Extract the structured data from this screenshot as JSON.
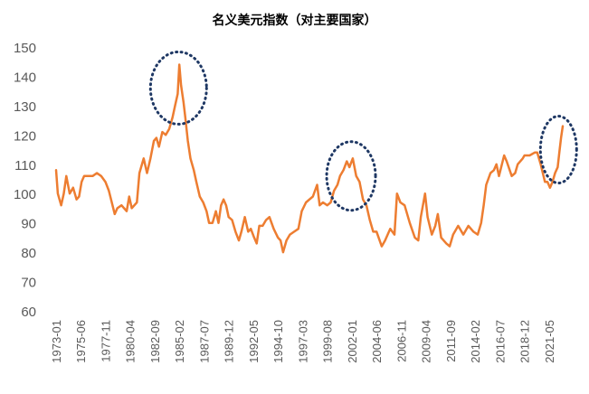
{
  "chart_data": {
    "type": "line",
    "title": "名义美元指数（对主要国家）",
    "xlabel": "",
    "ylabel": "",
    "ylim": [
      60,
      150
    ],
    "y_ticks": [
      60,
      70,
      80,
      90,
      100,
      110,
      120,
      130,
      140,
      150
    ],
    "x_tick_labels": [
      "1973-01",
      "1975-06",
      "1977-11",
      "1980-04",
      "1982-09",
      "1985-02",
      "1987-07",
      "1989-12",
      "1992-05",
      "1994-10",
      "1997-03",
      "1999-08",
      "2002-01",
      "2004-06",
      "2006-11",
      "2009-04",
      "2011-09",
      "2014-02",
      "2016-07",
      "2018-12",
      "2021-05"
    ],
    "x_range": [
      "1973-01",
      "2022-09"
    ],
    "grid": false,
    "legend": "none",
    "colors": {
      "line": "#ED7D31",
      "annotation": "#1F3864",
      "axis_text": "#595959"
    },
    "series": [
      {
        "points": [
          [
            "1973-01",
            108
          ],
          [
            "1973-03",
            100
          ],
          [
            "1973-07",
            96
          ],
          [
            "1973-10",
            100
          ],
          [
            "1974-01",
            106
          ],
          [
            "1974-05",
            100
          ],
          [
            "1974-09",
            102
          ],
          [
            "1975-01",
            98
          ],
          [
            "1975-04",
            99
          ],
          [
            "1975-07",
            104
          ],
          [
            "1975-10",
            106
          ],
          [
            "1976-03",
            106
          ],
          [
            "1976-08",
            106
          ],
          [
            "1977-01",
            107
          ],
          [
            "1977-06",
            106
          ],
          [
            "1977-11",
            104
          ],
          [
            "1978-03",
            101
          ],
          [
            "1978-10",
            93
          ],
          [
            "1979-01",
            95
          ],
          [
            "1979-06",
            96
          ],
          [
            "1979-12",
            94
          ],
          [
            "1980-03",
            99
          ],
          [
            "1980-06",
            95
          ],
          [
            "1980-12",
            97
          ],
          [
            "1981-03",
            107
          ],
          [
            "1981-08",
            112
          ],
          [
            "1981-12",
            107
          ],
          [
            "1982-04",
            112
          ],
          [
            "1982-08",
            118
          ],
          [
            "1982-11",
            119
          ],
          [
            "1983-02",
            116
          ],
          [
            "1983-06",
            121
          ],
          [
            "1983-10",
            120
          ],
          [
            "1984-02",
            122
          ],
          [
            "1984-06",
            126
          ],
          [
            "1984-09",
            130
          ],
          [
            "1984-12",
            134
          ],
          [
            "1985-02",
            144
          ],
          [
            "1985-04",
            137
          ],
          [
            "1985-07",
            131
          ],
          [
            "1985-09",
            126
          ],
          [
            "1985-12",
            118
          ],
          [
            "1986-03",
            112
          ],
          [
            "1986-07",
            108
          ],
          [
            "1986-10",
            104
          ],
          [
            "1987-02",
            99
          ],
          [
            "1987-06",
            97
          ],
          [
            "1987-10",
            94
          ],
          [
            "1988-01",
            90
          ],
          [
            "1988-05",
            90
          ],
          [
            "1988-09",
            94
          ],
          [
            "1988-12",
            90
          ],
          [
            "1989-03",
            96
          ],
          [
            "1989-06",
            98
          ],
          [
            "1989-09",
            96
          ],
          [
            "1989-12",
            92
          ],
          [
            "1990-04",
            91
          ],
          [
            "1990-08",
            87
          ],
          [
            "1990-12",
            84
          ],
          [
            "1991-03",
            87
          ],
          [
            "1991-07",
            92
          ],
          [
            "1991-11",
            87
          ],
          [
            "1992-02",
            88
          ],
          [
            "1992-06",
            85
          ],
          [
            "1992-09",
            83
          ],
          [
            "1992-12",
            89
          ],
          [
            "1993-04",
            89
          ],
          [
            "1993-08",
            91
          ],
          [
            "1993-12",
            92
          ],
          [
            "1994-05",
            88
          ],
          [
            "1994-10",
            85
          ],
          [
            "1995-01",
            84
          ],
          [
            "1995-04",
            80
          ],
          [
            "1995-08",
            84
          ],
          [
            "1995-12",
            86
          ],
          [
            "1996-05",
            87
          ],
          [
            "1996-10",
            88
          ],
          [
            "1997-02",
            94
          ],
          [
            "1997-07",
            97
          ],
          [
            "1997-11",
            98
          ],
          [
            "1998-03",
            99
          ],
          [
            "1998-08",
            103
          ],
          [
            "1998-11",
            96
          ],
          [
            "1999-03",
            97
          ],
          [
            "1999-08",
            96
          ],
          [
            "1999-12",
            97
          ],
          [
            "2000-04",
            101
          ],
          [
            "2000-08",
            103
          ],
          [
            "2000-11",
            106
          ],
          [
            "2001-03",
            108
          ],
          [
            "2001-07",
            111
          ],
          [
            "2001-10",
            109
          ],
          [
            "2002-02",
            112
          ],
          [
            "2002-06",
            106
          ],
          [
            "2002-10",
            104
          ],
          [
            "2003-02",
            98
          ],
          [
            "2003-06",
            96
          ],
          [
            "2003-10",
            91
          ],
          [
            "2004-02",
            87
          ],
          [
            "2004-06",
            87
          ],
          [
            "2004-12",
            82
          ],
          [
            "2005-04",
            84
          ],
          [
            "2005-10",
            88
          ],
          [
            "2006-03",
            86
          ],
          [
            "2006-06",
            100
          ],
          [
            "2006-10",
            97
          ],
          [
            "2007-03",
            96
          ],
          [
            "2007-09",
            90
          ],
          [
            "2008-03",
            85
          ],
          [
            "2008-07",
            84
          ],
          [
            "2008-10",
            92
          ],
          [
            "2009-03",
            100
          ],
          [
            "2009-06",
            92
          ],
          [
            "2009-11",
            86
          ],
          [
            "2010-03",
            89
          ],
          [
            "2010-06",
            93
          ],
          [
            "2010-10",
            85
          ],
          [
            "2011-04",
            83
          ],
          [
            "2011-08",
            82
          ],
          [
            "2011-12",
            86
          ],
          [
            "2012-06",
            89
          ],
          [
            "2012-12",
            86
          ],
          [
            "2013-06",
            89
          ],
          [
            "2013-12",
            87
          ],
          [
            "2014-05",
            86
          ],
          [
            "2014-09",
            90
          ],
          [
            "2014-12",
            96
          ],
          [
            "2015-03",
            103
          ],
          [
            "2015-08",
            107
          ],
          [
            "2015-12",
            108
          ],
          [
            "2016-03",
            110
          ],
          [
            "2016-06",
            106
          ],
          [
            "2016-12",
            113
          ],
          [
            "2017-03",
            111
          ],
          [
            "2017-09",
            106
          ],
          [
            "2018-01",
            107
          ],
          [
            "2018-04",
            110
          ],
          [
            "2018-10",
            112
          ],
          [
            "2018-12",
            113
          ],
          [
            "2019-06",
            113
          ],
          [
            "2019-12",
            114
          ],
          [
            "2020-03",
            114
          ],
          [
            "2020-07",
            110
          ],
          [
            "2020-12",
            104
          ],
          [
            "2021-03",
            104
          ],
          [
            "2021-06",
            102
          ],
          [
            "2021-09",
            104
          ],
          [
            "2021-12",
            107
          ],
          [
            "2022-03",
            109
          ],
          [
            "2022-05",
            114
          ],
          [
            "2022-07",
            119
          ],
          [
            "2022-09",
            123
          ]
        ]
      }
    ],
    "annotations": [
      {
        "type": "dotted-ellipse",
        "x_center": "1985-01",
        "y_center": 136
      },
      {
        "type": "dotted-ellipse",
        "x_center": "2001-12",
        "y_center": 106
      },
      {
        "type": "dotted-ellipse",
        "x_center": "2022-04",
        "y_center": 115
      }
    ]
  }
}
